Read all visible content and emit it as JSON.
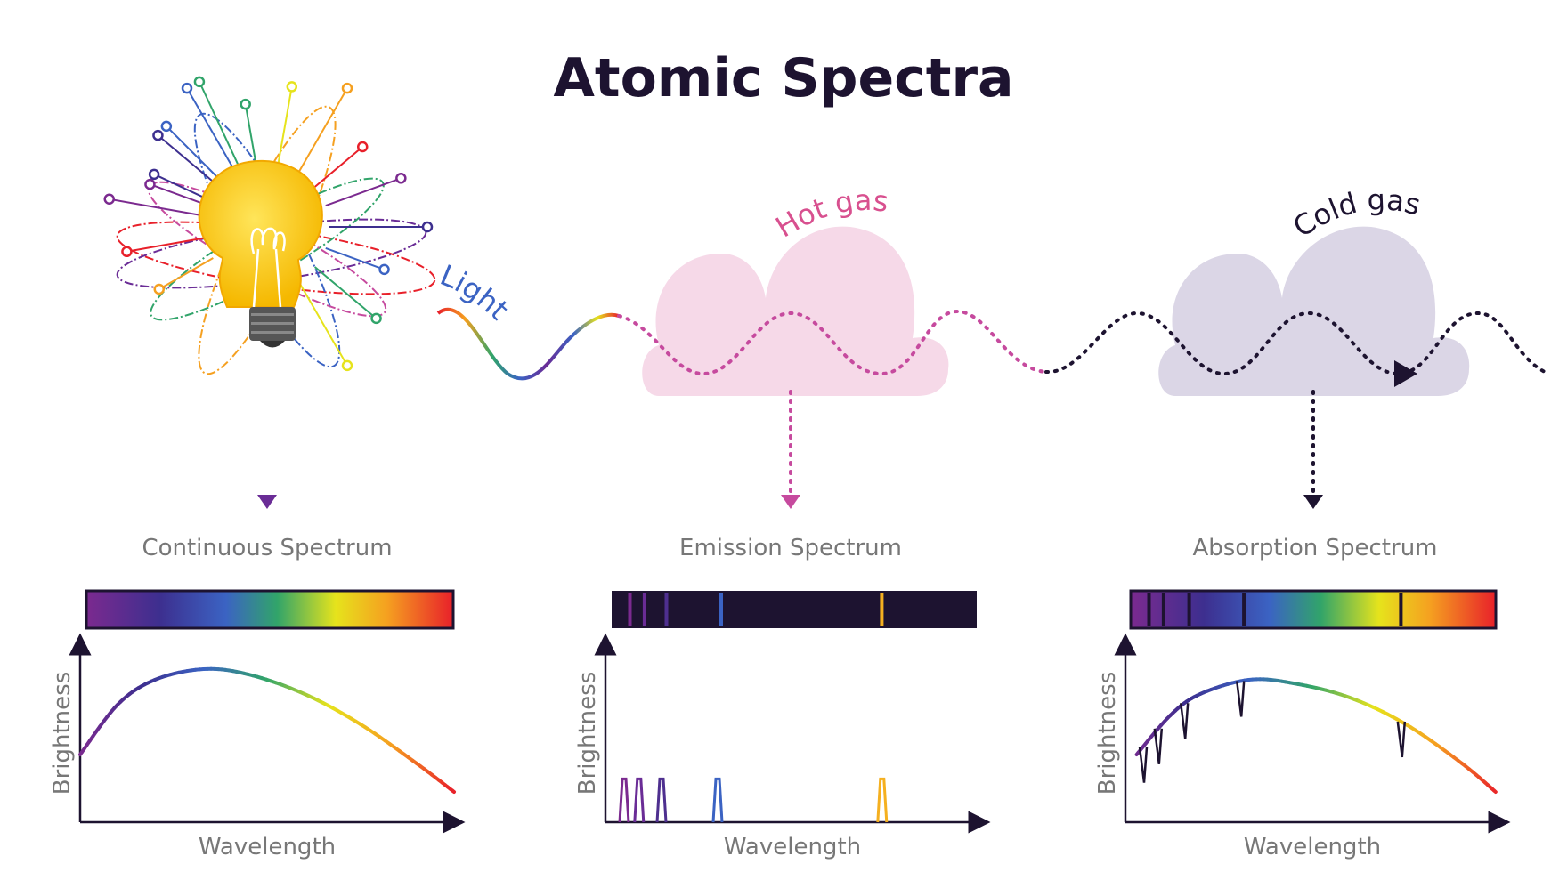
{
  "title": "Atomic Spectra",
  "labels": {
    "light": "Light",
    "hot_gas": "Hot gas",
    "cold_gas": "Cold gas"
  },
  "panels": [
    {
      "id": "continuous",
      "label": "Continuous Spectrum",
      "xlabel": "Wavelength",
      "ylabel": "Brightness"
    },
    {
      "id": "emission",
      "label": "Emission Spectrum",
      "xlabel": "Wavelength",
      "ylabel": "Brightness"
    },
    {
      "id": "absorption",
      "label": "Absorption Spectrum",
      "xlabel": "Wavelength",
      "ylabel": "Brightness"
    }
  ],
  "colors": {
    "title": "#1d1330",
    "hot_gas_cloud": "#f6d9e8",
    "cold_gas_cloud": "#dbd6e6",
    "hot_gas_text": "#d8508f",
    "emission_arrow": "#c64a9e",
    "dark": "#1d1330",
    "spectrum": [
      "#7b2a8f",
      "#3d2f8f",
      "#3b63c3",
      "#31a46a",
      "#e6e31c",
      "#f5a020",
      "#e8202a"
    ]
  },
  "chart_data": [
    {
      "type": "line",
      "title": "Continuous Spectrum",
      "xlabel": "Wavelength",
      "ylabel": "Brightness",
      "description_curve": "smooth blackbody-like curve",
      "x": [
        0,
        0.1,
        0.2,
        0.33,
        0.45,
        0.6,
        0.75,
        0.9,
        1.0
      ],
      "y": [
        0.38,
        0.66,
        0.8,
        0.86,
        0.83,
        0.72,
        0.55,
        0.33,
        0.17
      ]
    },
    {
      "type": "line",
      "title": "Emission Spectrum",
      "xlabel": "Wavelength",
      "ylabel": "Brightness",
      "emission_lines": [
        {
          "x": 0.05,
          "height": 0.27,
          "color": "#7b2a8f"
        },
        {
          "x": 0.09,
          "height": 0.27,
          "color": "#6a2c96"
        },
        {
          "x": 0.15,
          "height": 0.27,
          "color": "#4e2f8f"
        },
        {
          "x": 0.3,
          "height": 0.27,
          "color": "#3b63c3"
        },
        {
          "x": 0.74,
          "height": 0.27,
          "color": "#f5b020"
        }
      ]
    },
    {
      "type": "line",
      "title": "Absorption Spectrum",
      "xlabel": "Wavelength",
      "ylabel": "Brightness",
      "x": [
        0.03,
        0.12,
        0.2,
        0.33,
        0.45,
        0.6,
        0.75,
        0.9,
        0.99
      ],
      "y": [
        0.38,
        0.6,
        0.72,
        0.8,
        0.78,
        0.7,
        0.55,
        0.33,
        0.17
      ],
      "absorption_lines": [
        0.05,
        0.09,
        0.16,
        0.31,
        0.74
      ]
    }
  ]
}
